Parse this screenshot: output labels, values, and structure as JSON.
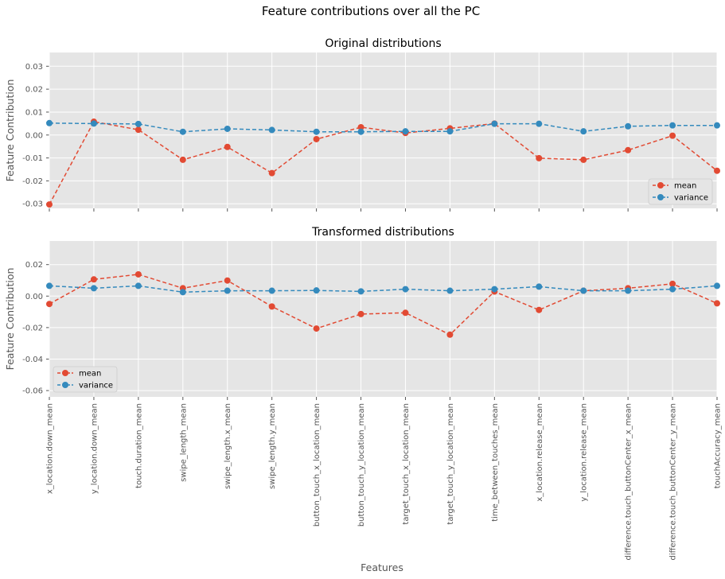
{
  "figure": {
    "suptitle": "Feature contributions over all the PC",
    "xlabel": "Features"
  },
  "colors": {
    "mean": "#E24A33",
    "variance": "#348ABD",
    "axes_bg": "#E5E5E5",
    "grid": "#FFFFFF",
    "text": "#555555"
  },
  "chart_data": [
    {
      "type": "line",
      "title": "Original distributions",
      "xlabel": "",
      "ylabel": "Feature Contribution",
      "ylim": [
        -0.032,
        0.036
      ],
      "yticks": [
        "-0.03",
        "-0.02",
        "-0.01",
        "0.00",
        "0.01",
        "0.02",
        "0.03"
      ],
      "ytick_values": [
        -0.03,
        -0.02,
        -0.01,
        0.0,
        0.01,
        0.02,
        0.03
      ],
      "grid": true,
      "legend_position": "lower right",
      "categories": [
        "x_location.down_mean",
        "y_location.down_mean",
        "touch.duration_mean",
        "swipe_length_mean",
        "swipe_length.x_mean",
        "swipe_length.y_mean",
        "button_touch_x_location_mean",
        "button_touch_y_location_mean",
        "target_touch_x_location_mean",
        "target_touch_y_location_mean",
        "time_between_touches_mean",
        "x_location.release_mean",
        "y_location.release_mean",
        "difference.touch_buttonCenter_x_mean",
        "difference.touch_buttonCenter_y_mean",
        "touchAccuracy_mean"
      ],
      "series": [
        {
          "name": "mean",
          "values": [
            -0.0303,
            0.0058,
            0.0023,
            -0.0108,
            -0.0052,
            -0.0166,
            -0.0018,
            0.0034,
            0.0009,
            0.0029,
            0.005,
            -0.0101,
            -0.0108,
            -0.0066,
            -0.0003,
            -0.0156
          ]
        },
        {
          "name": "variance",
          "values": [
            0.0052,
            0.005,
            0.0048,
            0.0014,
            0.0027,
            0.0022,
            0.0014,
            0.0014,
            0.0016,
            0.0016,
            0.0049,
            0.0049,
            0.0016,
            0.0038,
            0.0042,
            0.0042
          ]
        }
      ]
    },
    {
      "type": "line",
      "title": "Transformed distributions",
      "xlabel": "Features",
      "ylabel": "Feature Contribution",
      "ylim": [
        -0.064,
        0.035
      ],
      "yticks": [
        "-0.06",
        "-0.04",
        "-0.02",
        "0.00",
        "0.02"
      ],
      "ytick_values": [
        -0.06,
        -0.04,
        -0.02,
        0.0,
        0.02
      ],
      "grid": true,
      "legend_position": "lower left",
      "categories": [
        "x_location.down_mean",
        "y_location.down_mean",
        "touch.duration_mean",
        "swipe_length_mean",
        "swipe_length.x_mean",
        "swipe_length.y_mean",
        "button_touch_x_location_mean",
        "button_touch_y_location_mean",
        "target_touch_x_location_mean",
        "target_touch_y_location_mean",
        "time_between_touches_mean",
        "x_location.release_mean",
        "y_location.release_mean",
        "difference.touch_buttonCenter_x_mean",
        "difference.touch_buttonCenter_y_mean",
        "touchAccuracy_mean"
      ],
      "series": [
        {
          "name": "mean",
          "values": [
            -0.005,
            0.0106,
            0.0138,
            0.005,
            0.0099,
            -0.0066,
            -0.0206,
            -0.0114,
            -0.0106,
            -0.0245,
            0.0029,
            -0.0088,
            0.0034,
            0.005,
            0.0078,
            -0.0046
          ]
        },
        {
          "name": "variance",
          "values": [
            0.0065,
            0.005,
            0.0065,
            0.0025,
            0.0034,
            0.0034,
            0.0036,
            0.003,
            0.0044,
            0.0034,
            0.0044,
            0.006,
            0.0034,
            0.0034,
            0.0044,
            0.0065
          ]
        }
      ]
    }
  ]
}
